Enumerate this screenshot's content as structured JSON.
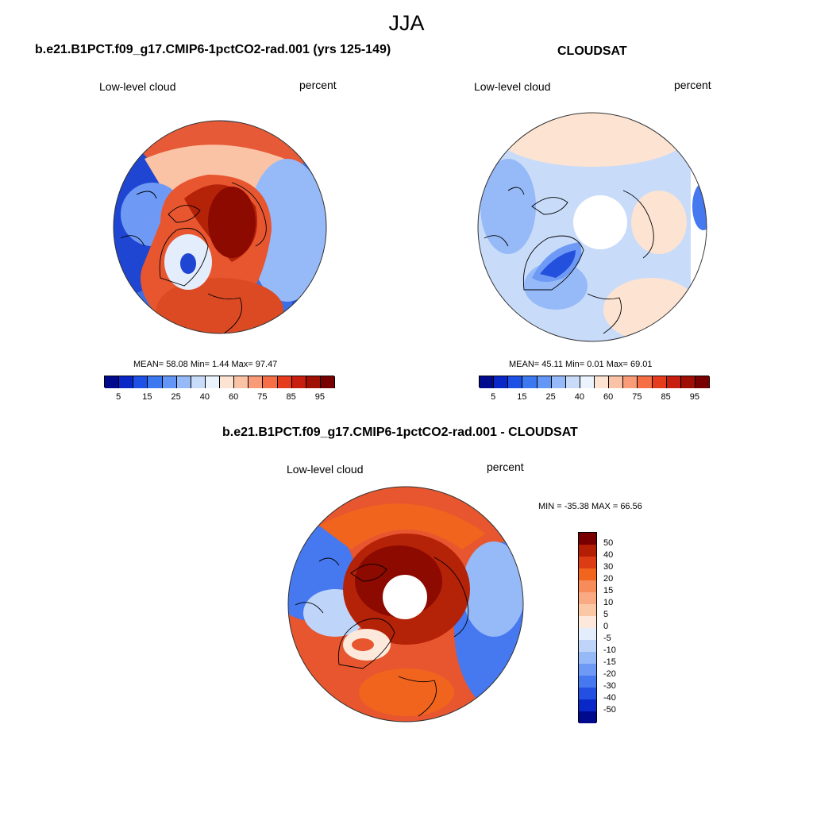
{
  "figure": {
    "season": "JJA"
  },
  "panels": {
    "model": {
      "title": "b.e21.B1PCT.f09_g17.CMIP6-1pctCO2-rad.001 (yrs 125-149)",
      "left_label": "Low-level cloud",
      "right_label": "percent",
      "stats": "MEAN=  58.08  Min=   1.44  Max=  97.47"
    },
    "obs": {
      "title": "CLOUDSAT",
      "left_label": "Low-level cloud",
      "right_label": "percent",
      "stats": "MEAN=  45.11  Min=   0.01  Max=  69.01"
    },
    "diff": {
      "title": "b.e21.B1PCT.f09_g17.CMIP6-1pctCO2-rad.001 - CLOUDSAT",
      "left_label": "Low-level cloud",
      "right_label": "percent",
      "stats": "MIN = -35.38 MAX =  66.56"
    }
  },
  "colorbar_abs": {
    "labels": [
      "5",
      "15",
      "25",
      "40",
      "60",
      "75",
      "85",
      "95"
    ],
    "colors": [
      "#000a8c",
      "#0a28c8",
      "#1e50e6",
      "#3c78f0",
      "#6496f5",
      "#96b9f8",
      "#c8dcfa",
      "#ebf3fd",
      "#fde3d2",
      "#fbc3a5",
      "#f99b78",
      "#f56e46",
      "#e63c1e",
      "#c81e0f",
      "#a00f05",
      "#780000"
    ]
  },
  "colorbar_diff": {
    "labels": [
      "50",
      "40",
      "30",
      "20",
      "15",
      "10",
      "5",
      "0",
      "-5",
      "-10",
      "-15",
      "-20",
      "-30",
      "-40",
      "-50"
    ],
    "colors": [
      "#780000",
      "#b41e05",
      "#dc3c14",
      "#f0641e",
      "#f58c5a",
      "#f9aa82",
      "#fbc8a5",
      "#fde9dc",
      "#e3edfb",
      "#bed5f9",
      "#96b9f8",
      "#6e9af5",
      "#4678f0",
      "#2350e1",
      "#0a28c8",
      "#000a8c"
    ]
  }
}
